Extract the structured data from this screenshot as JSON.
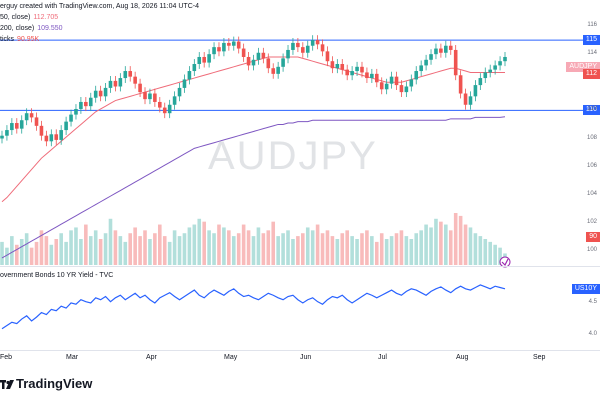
{
  "header": {
    "author_line": "erguy created with TradingView.com, Aug 18, 2026 11:04 UTC-4",
    "ma50_label": "50, close)",
    "ma50_value": "112.705",
    "ma200_label": "200, close)",
    "ma200_value": "109.550",
    "vol_label": "ticks",
    "vol_value": "90.95K",
    "bond_label": "overnment Bonds 10 YR Yield - TVC"
  },
  "watermark": "AUDJPY",
  "brand": {
    "name": "TradingView"
  },
  "colors": {
    "up": "#26a69a",
    "down": "#ef5350",
    "ma50": "#ef6c7a",
    "ma200": "#7e57c2",
    "hline": "#2962ff",
    "bond": "#2962ff",
    "vol_up": "#b2dfdb",
    "vol_down": "#f8bbbb"
  },
  "price_labels": [
    {
      "text": "115",
      "price": 115.0,
      "color": "#2962ff"
    },
    {
      "text": "AUDJPY",
      "price": 113.1,
      "color": "#f7a9b5"
    },
    {
      "text": "112",
      "price": 112.6,
      "color": "#ef5350"
    },
    {
      "text": "110",
      "price": 110.0,
      "color": "#2962ff"
    },
    {
      "text": "90",
      "price": 101.0,
      "color": "#ef5350"
    },
    {
      "text": "US10Y",
      "price": 4.72,
      "pane": "bond",
      "color": "#2962ff"
    }
  ],
  "axis_ticks": {
    "price": [
      "116",
      "114",
      "110",
      "108",
      "106",
      "104",
      "102",
      "100"
    ],
    "bond": [
      "4.5",
      "4.0"
    ]
  },
  "chart_data": {
    "type": "candlestick",
    "title": "",
    "x_ticks": [
      "Feb",
      "Mar",
      "Apr",
      "May",
      "Jun",
      "Jul",
      "Aug",
      "Sep"
    ],
    "ylim": [
      99,
      117
    ],
    "horizontal_lines": [
      115.0,
      110.0
    ],
    "close": [
      108.2,
      108.6,
      109.1,
      108.7,
      109.3,
      109.8,
      109.5,
      108.9,
      108.2,
      107.8,
      108.3,
      107.9,
      108.6,
      109.2,
      109.7,
      110.1,
      110.6,
      110.3,
      110.9,
      111.4,
      111.0,
      111.6,
      112.1,
      111.7,
      112.3,
      112.8,
      112.4,
      111.9,
      111.3,
      110.8,
      111.2,
      110.6,
      110.2,
      109.8,
      110.4,
      111.0,
      111.6,
      112.2,
      112.8,
      113.3,
      113.8,
      113.4,
      114.0,
      114.5,
      114.2,
      114.8,
      114.6,
      114.9,
      114.4,
      113.8,
      113.2,
      113.6,
      114.1,
      113.7,
      113.0,
      112.6,
      113.1,
      113.7,
      114.3,
      114.8,
      114.5,
      114.1,
      114.6,
      115.0,
      114.7,
      114.2,
      113.5,
      113.0,
      113.3,
      112.9,
      112.5,
      112.8,
      113.1,
      112.7,
      112.3,
      112.6,
      112.0,
      111.5,
      111.9,
      112.4,
      111.8,
      111.3,
      111.7,
      112.2,
      112.8,
      113.2,
      113.6,
      114.0,
      114.4,
      114.1,
      114.6,
      114.3,
      112.5,
      111.2,
      110.4,
      111.0,
      111.8,
      112.3,
      112.7,
      112.9,
      113.2,
      113.5,
      113.8
    ],
    "open": [
      108.0,
      108.2,
      108.6,
      109.1,
      108.7,
      109.3,
      109.8,
      109.5,
      108.9,
      108.2,
      107.8,
      108.3,
      107.9,
      108.6,
      109.2,
      109.7,
      110.1,
      110.6,
      110.3,
      110.9,
      111.4,
      111.0,
      111.6,
      112.1,
      111.7,
      112.3,
      112.8,
      112.4,
      111.9,
      111.3,
      110.8,
      111.2,
      110.6,
      110.2,
      109.8,
      110.4,
      111.0,
      111.6,
      112.2,
      112.8,
      113.3,
      113.8,
      113.4,
      114.0,
      114.5,
      114.2,
      114.8,
      114.6,
      114.9,
      114.4,
      113.8,
      113.2,
      113.6,
      114.1,
      113.7,
      113.0,
      112.6,
      113.1,
      113.7,
      114.3,
      114.8,
      114.5,
      114.1,
      114.6,
      115.0,
      114.7,
      114.2,
      113.5,
      113.0,
      113.3,
      112.9,
      112.5,
      112.8,
      113.1,
      112.7,
      112.3,
      112.6,
      112.0,
      111.5,
      111.9,
      112.4,
      111.8,
      111.3,
      111.7,
      112.2,
      112.8,
      113.2,
      113.6,
      114.0,
      114.4,
      114.1,
      114.6,
      114.3,
      112.5,
      111.2,
      110.4,
      111.0,
      111.8,
      112.3,
      112.7,
      112.9,
      113.2,
      113.5
    ],
    "ma50": [
      103.5,
      103.8,
      104.2,
      104.6,
      105.0,
      105.4,
      105.8,
      106.2,
      106.6,
      106.9,
      107.2,
      107.5,
      107.8,
      108.1,
      108.4,
      108.7,
      109.0,
      109.3,
      109.6,
      109.9,
      110.1,
      110.3,
      110.5,
      110.7,
      110.8,
      110.9,
      111.0,
      111.1,
      111.2,
      111.3,
      111.4,
      111.5,
      111.6,
      111.7,
      111.8,
      111.9,
      112.0,
      112.1,
      112.2,
      112.3,
      112.4,
      112.5,
      112.6,
      112.7,
      112.8,
      112.9,
      113.0,
      113.1,
      113.2,
      113.3,
      113.4,
      113.5,
      113.6,
      113.7,
      113.8,
      113.8,
      113.8,
      113.8,
      113.8,
      113.8,
      113.8,
      113.7,
      113.6,
      113.5,
      113.4,
      113.3,
      113.2,
      113.1,
      113.0,
      112.9,
      112.8,
      112.7,
      112.6,
      112.5,
      112.4,
      112.3,
      112.2,
      112.1,
      112.0,
      112.0,
      112.0,
      112.0,
      112.1,
      112.2,
      112.3,
      112.4,
      112.5,
      112.6,
      112.7,
      112.8,
      112.9,
      113.0,
      113.0,
      112.9,
      112.8,
      112.7,
      112.7,
      112.7,
      112.7,
      112.7,
      112.7,
      112.7,
      112.7
    ],
    "ma200": [
      99.5,
      99.7,
      99.9,
      100.1,
      100.3,
      100.5,
      100.7,
      100.9,
      101.1,
      101.3,
      101.5,
      101.7,
      101.9,
      102.1,
      102.3,
      102.5,
      102.7,
      102.9,
      103.1,
      103.3,
      103.5,
      103.7,
      103.9,
      104.1,
      104.3,
      104.5,
      104.7,
      104.9,
      105.1,
      105.3,
      105.5,
      105.7,
      105.9,
      106.1,
      106.3,
      106.5,
      106.7,
      106.9,
      107.1,
      107.3,
      107.4,
      107.5,
      107.6,
      107.7,
      107.8,
      107.9,
      108.0,
      108.1,
      108.2,
      108.3,
      108.4,
      108.5,
      108.6,
      108.7,
      108.8,
      108.9,
      109.0,
      109.0,
      109.1,
      109.1,
      109.2,
      109.2,
      109.2,
      109.3,
      109.3,
      109.3,
      109.3,
      109.3,
      109.3,
      109.3,
      109.3,
      109.3,
      109.3,
      109.3,
      109.3,
      109.3,
      109.3,
      109.3,
      109.3,
      109.3,
      109.3,
      109.3,
      109.3,
      109.3,
      109.3,
      109.3,
      109.3,
      109.3,
      109.3,
      109.3,
      109.3,
      109.4,
      109.4,
      109.4,
      109.4,
      109.4,
      109.5,
      109.5,
      109.5,
      109.5,
      109.5,
      109.5,
      109.55
    ],
    "volume": [
      40,
      30,
      50,
      35,
      45,
      55,
      30,
      40,
      60,
      50,
      35,
      45,
      55,
      40,
      60,
      65,
      45,
      70,
      50,
      60,
      45,
      55,
      80,
      60,
      50,
      40,
      55,
      65,
      50,
      60,
      45,
      55,
      70,
      50,
      40,
      60,
      50,
      55,
      65,
      70,
      80,
      75,
      60,
      55,
      70,
      65,
      60,
      50,
      55,
      70,
      60,
      50,
      65,
      55,
      60,
      75,
      50,
      55,
      60,
      45,
      50,
      55,
      65,
      60,
      70,
      55,
      60,
      50,
      45,
      55,
      60,
      50,
      45,
      55,
      60,
      50,
      40,
      55,
      45,
      50,
      55,
      60,
      50,
      45,
      55,
      60,
      70,
      65,
      80,
      75,
      70,
      60,
      90,
      85,
      70,
      65,
      55,
      50,
      45,
      40,
      35,
      30,
      20
    ],
    "bond_yield": [
      4.1,
      4.15,
      4.2,
      4.18,
      4.25,
      4.3,
      4.22,
      4.28,
      4.35,
      4.32,
      4.4,
      4.38,
      4.45,
      4.42,
      4.5,
      4.48,
      4.55,
      4.52,
      4.5,
      4.58,
      4.55,
      4.6,
      4.52,
      4.58,
      4.62,
      4.55,
      4.6,
      4.65,
      4.58,
      4.62,
      4.55,
      4.5,
      4.58,
      4.62,
      4.66,
      4.6,
      4.55,
      4.6,
      4.65,
      4.7,
      4.62,
      4.58,
      4.65,
      4.7,
      4.66,
      4.62,
      4.68,
      4.72,
      4.65,
      4.6,
      4.62,
      4.58,
      4.55,
      4.6,
      4.65,
      4.62,
      4.58,
      4.55,
      4.6,
      4.62,
      4.55,
      4.5,
      4.55,
      4.58,
      4.52,
      4.48,
      4.55,
      4.6,
      4.58,
      4.62,
      4.55,
      4.5,
      4.55,
      4.6,
      4.65,
      4.62,
      4.58,
      4.62,
      4.66,
      4.7,
      4.65,
      4.62,
      4.68,
      4.72,
      4.7,
      4.66,
      4.62,
      4.68,
      4.72,
      4.75,
      4.7,
      4.66,
      4.72,
      4.76,
      4.72,
      4.7,
      4.74,
      4.78,
      4.75,
      4.72,
      4.76,
      4.74,
      4.72
    ],
    "bond_ylim": [
      3.8,
      4.95
    ]
  }
}
